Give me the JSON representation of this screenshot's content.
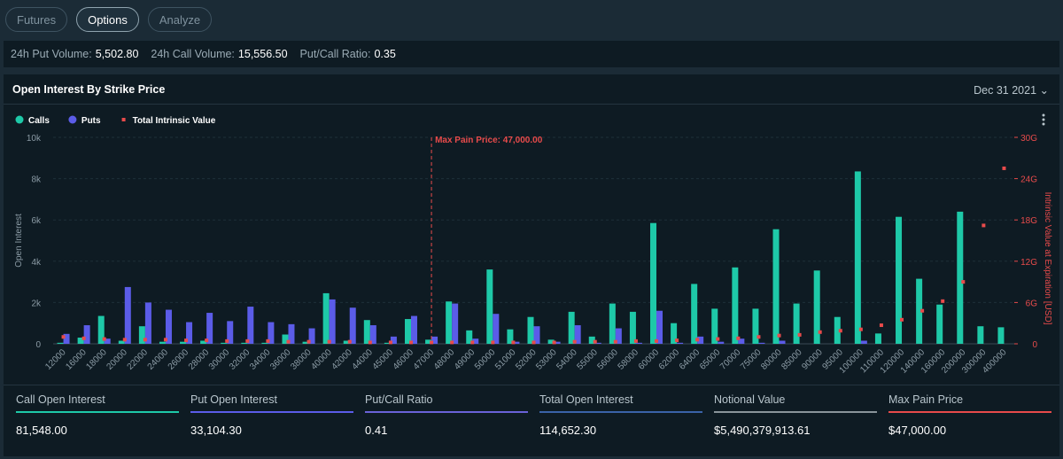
{
  "tabs": [
    "Futures",
    "Options",
    "Analyze"
  ],
  "stats": [
    {
      "label": "24h Put Volume:",
      "value": "5,502.80"
    },
    {
      "label": "24h Call Volume:",
      "value": "15,556.50"
    },
    {
      "label": "Put/Call Ratio:",
      "value": "0.35"
    }
  ],
  "panel": {
    "title": "Open Interest By Strike Price",
    "date": "Dec 31 2021"
  },
  "summary": [
    {
      "label": "Call Open Interest",
      "value": "81,548.00"
    },
    {
      "label": "Put Open Interest",
      "value": "33,104.30"
    },
    {
      "label": "Put/Call Ratio",
      "value": "0.41"
    },
    {
      "label": "Total Open Interest",
      "value": "114,652.30"
    },
    {
      "label": "Notional Value",
      "value": "$5,490,379,913.61"
    },
    {
      "label": "Max Pain Price",
      "value": "$47,000.00"
    }
  ],
  "chart_data": {
    "type": "bar",
    "y_label": "Open Interest",
    "y2_label": "Intrinsic Value at Expiration [USD]",
    "categories": [
      "12000",
      "16000",
      "18000",
      "20000",
      "22000",
      "24000",
      "26000",
      "28000",
      "30000",
      "32000",
      "34000",
      "36000",
      "38000",
      "40000",
      "42000",
      "44000",
      "45000",
      "46000",
      "47000",
      "48000",
      "49000",
      "50000",
      "51000",
      "52000",
      "53000",
      "54000",
      "55000",
      "56000",
      "58000",
      "60000",
      "62000",
      "64000",
      "65000",
      "70000",
      "75000",
      "80000",
      "85000",
      "90000",
      "95000",
      "100000",
      "110000",
      "120000",
      "140000",
      "160000",
      "200000",
      "300000",
      "400000"
    ],
    "series": [
      {
        "name": "Calls",
        "type": "bar",
        "color": "#1ec9a8",
        "values": [
          50,
          300,
          1350,
          150,
          850,
          100,
          100,
          150,
          50,
          50,
          50,
          450,
          100,
          2450,
          150,
          1150,
          50,
          1200,
          200,
          2050,
          650,
          3600,
          700,
          1300,
          200,
          1550,
          350,
          1950,
          1550,
          5850,
          1000,
          2900,
          1700,
          3700,
          1700,
          5550,
          1950,
          3550,
          1300,
          8350,
          500,
          6150,
          3150,
          1900,
          6400,
          850,
          800
        ]
      },
      {
        "name": "Puts",
        "type": "bar",
        "color": "#5b5ce8",
        "values": [
          480,
          900,
          250,
          2750,
          2000,
          1650,
          1050,
          1500,
          1100,
          1800,
          1050,
          950,
          750,
          2150,
          1750,
          900,
          350,
          1350,
          350,
          1950,
          250,
          1450,
          100,
          850,
          100,
          900,
          50,
          750,
          50,
          1600,
          50,
          350,
          100,
          250,
          50,
          150,
          0,
          0,
          0,
          150,
          0,
          0,
          0,
          0,
          0,
          0,
          0
        ]
      },
      {
        "name": "Total Intrinsic Value",
        "type": "scatter",
        "axis": "y2",
        "color": "#e84b4b",
        "values": [
          1.0,
          0.8,
          0.7,
          0.6,
          0.6,
          0.6,
          0.5,
          0.5,
          0.4,
          0.4,
          0.4,
          0.3,
          0.3,
          0.3,
          0.3,
          0.2,
          0.2,
          0.2,
          0.2,
          0.2,
          0.2,
          0.2,
          0.2,
          0.2,
          0.2,
          0.3,
          0.3,
          0.3,
          0.4,
          0.4,
          0.5,
          0.6,
          0.7,
          0.8,
          1.0,
          1.2,
          1.3,
          1.7,
          1.9,
          2.1,
          2.7,
          3.5,
          4.8,
          6.2,
          9.0,
          17.2,
          25.5
        ]
      }
    ],
    "ylim": [
      0,
      10000
    ],
    "yticks": [
      0,
      {
        "value": 2000,
        "label": "2k"
      },
      {
        "value": 4000,
        "label": "4k"
      },
      {
        "value": 6000,
        "label": "6k"
      },
      {
        "value": 8000,
        "label": "8k"
      },
      {
        "value": 10000,
        "label": "10k"
      }
    ],
    "y2lim": [
      0,
      30
    ],
    "y2ticks": [
      0,
      {
        "value": 6,
        "label": "6G"
      },
      {
        "value": 12,
        "label": "12G"
      },
      {
        "value": 18,
        "label": "18G"
      },
      {
        "value": 24,
        "label": "24G"
      },
      {
        "value": 30,
        "label": "30G"
      }
    ],
    "grid": true,
    "legend": "top-left",
    "annotation": {
      "text": "Max Pain Price: 47,000.00",
      "x": "47000",
      "color": "#e84b4b"
    }
  }
}
